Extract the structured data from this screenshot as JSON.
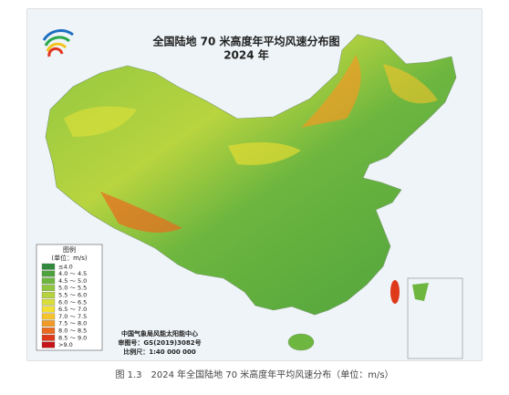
{
  "map": {
    "title": "全国陆地 70 米高度年平均风速分布图",
    "subtitle": "2024 年",
    "legend": {
      "title": "图例",
      "unit": "(单位：m/s)",
      "items": [
        {
          "label": "≤4.0",
          "color": "#2f8a3b"
        },
        {
          "label": "4.0 ～ 4.5",
          "color": "#4ea23d"
        },
        {
          "label": "4.5 ～ 5.0",
          "color": "#6db63f"
        },
        {
          "label": "5.0 ～ 5.5",
          "color": "#91c640"
        },
        {
          "label": "5.5 ～ 6.0",
          "color": "#b7d43f"
        },
        {
          "label": "6.0 ～ 6.5",
          "color": "#d9de3a"
        },
        {
          "label": "6.5 ～ 7.0",
          "color": "#f1df31"
        },
        {
          "label": "7.0 ～ 7.5",
          "color": "#f6c42a"
        },
        {
          "label": "7.5 ～ 8.0",
          "color": "#f29a23"
        },
        {
          "label": "8.0 ～ 8.5",
          "color": "#eb6a1e"
        },
        {
          "label": "8.5 ～ 9.0",
          "color": "#de3a1a"
        },
        {
          "label": ">9.0",
          "color": "#c5141a"
        }
      ]
    },
    "credits": [
      "中国气象局风能太阳能中心",
      "审图号：GS(2019)3082号",
      "比例尺：1:40 000 000"
    ],
    "caption": "图 1.3　2024 年全国陆地 70 米高度年平均风速分布（单位：m/s）"
  }
}
